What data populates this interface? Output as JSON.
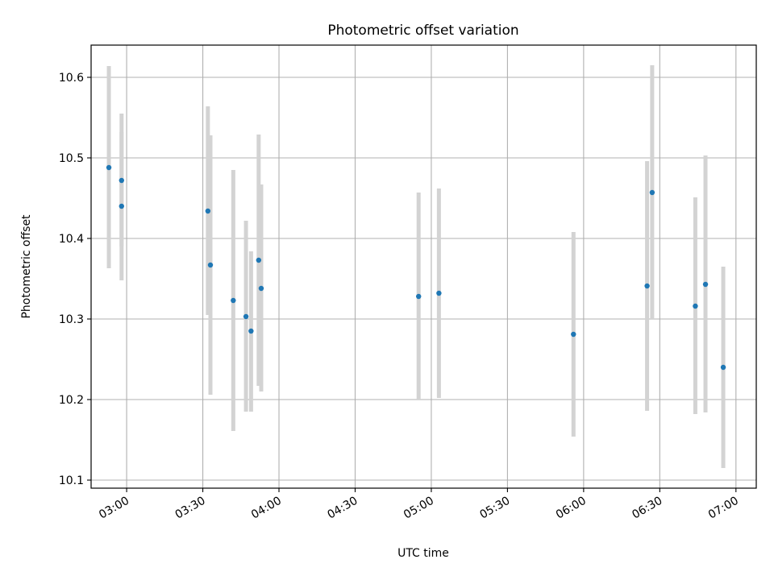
{
  "chart_data": {
    "type": "scatter",
    "title": "Photometric offset variation",
    "xlabel": "UTC time",
    "ylabel": "Photometric offset",
    "xlim": [
      "02:46",
      "07:08"
    ],
    "ylim": [
      10.09,
      10.64
    ],
    "xticks": [
      "03:00",
      "03:30",
      "04:00",
      "04:30",
      "05:00",
      "05:30",
      "06:00",
      "06:30",
      "07:00"
    ],
    "yticks": [
      10.1,
      10.2,
      10.3,
      10.4,
      10.5,
      10.6
    ],
    "grid": true,
    "point_color": "#1f77b4",
    "errorbar_color": "#d3d3d3",
    "points": [
      {
        "x": "02:53",
        "y": 10.488,
        "low": 10.363,
        "high": 10.614
      },
      {
        "x": "02:58",
        "y": 10.44,
        "low": 10.348,
        "high": 10.532
      },
      {
        "x": "02:58",
        "y": 10.472,
        "low": 10.39,
        "high": 10.555
      },
      {
        "x": "03:32",
        "y": 10.434,
        "low": 10.305,
        "high": 10.564
      },
      {
        "x": "03:33",
        "y": 10.367,
        "low": 10.206,
        "high": 10.528
      },
      {
        "x": "03:42",
        "y": 10.323,
        "low": 10.161,
        "high": 10.485
      },
      {
        "x": "03:47",
        "y": 10.303,
        "low": 10.185,
        "high": 10.422
      },
      {
        "x": "03:49",
        "y": 10.285,
        "low": 10.185,
        "high": 10.384
      },
      {
        "x": "03:52",
        "y": 10.373,
        "low": 10.217,
        "high": 10.529
      },
      {
        "x": "03:53",
        "y": 10.338,
        "low": 10.21,
        "high": 10.467
      },
      {
        "x": "04:55",
        "y": 10.328,
        "low": 10.2,
        "high": 10.457
      },
      {
        "x": "05:03",
        "y": 10.332,
        "low": 10.202,
        "high": 10.462
      },
      {
        "x": "05:56",
        "y": 10.281,
        "low": 10.154,
        "high": 10.408
      },
      {
        "x": "06:25",
        "y": 10.341,
        "low": 10.186,
        "high": 10.496
      },
      {
        "x": "06:27",
        "y": 10.457,
        "low": 10.3,
        "high": 10.615
      },
      {
        "x": "06:44",
        "y": 10.316,
        "low": 10.182,
        "high": 10.451
      },
      {
        "x": "06:48",
        "y": 10.343,
        "low": 10.184,
        "high": 10.503
      },
      {
        "x": "06:55",
        "y": 10.24,
        "low": 10.115,
        "high": 10.365
      }
    ]
  }
}
